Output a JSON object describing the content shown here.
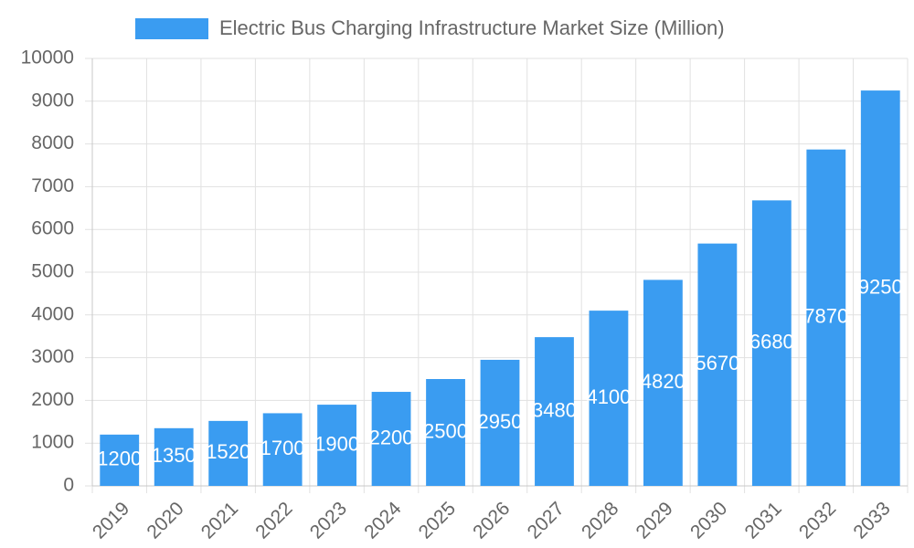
{
  "chart_data": {
    "type": "bar",
    "categories": [
      "2019",
      "2020",
      "2021",
      "2022",
      "2023",
      "2024",
      "2025",
      "2026",
      "2027",
      "2028",
      "2029",
      "2030",
      "2031",
      "2032",
      "2033"
    ],
    "series": [
      {
        "name": "Electric Bus Charging Infrastructure Market Size (Million)",
        "color": "#3a9cf1",
        "values": [
          1200,
          1350,
          1520,
          1700,
          1900,
          2200,
          2500,
          2950,
          3480,
          4100,
          4820,
          5670,
          6680,
          7870,
          9250
        ]
      }
    ],
    "ylim": [
      0,
      10000
    ],
    "yticks": [
      0,
      1000,
      2000,
      3000,
      4000,
      5000,
      6000,
      7000,
      8000,
      9000,
      10000
    ],
    "grid": true,
    "legend": "top",
    "data_labels": true
  }
}
